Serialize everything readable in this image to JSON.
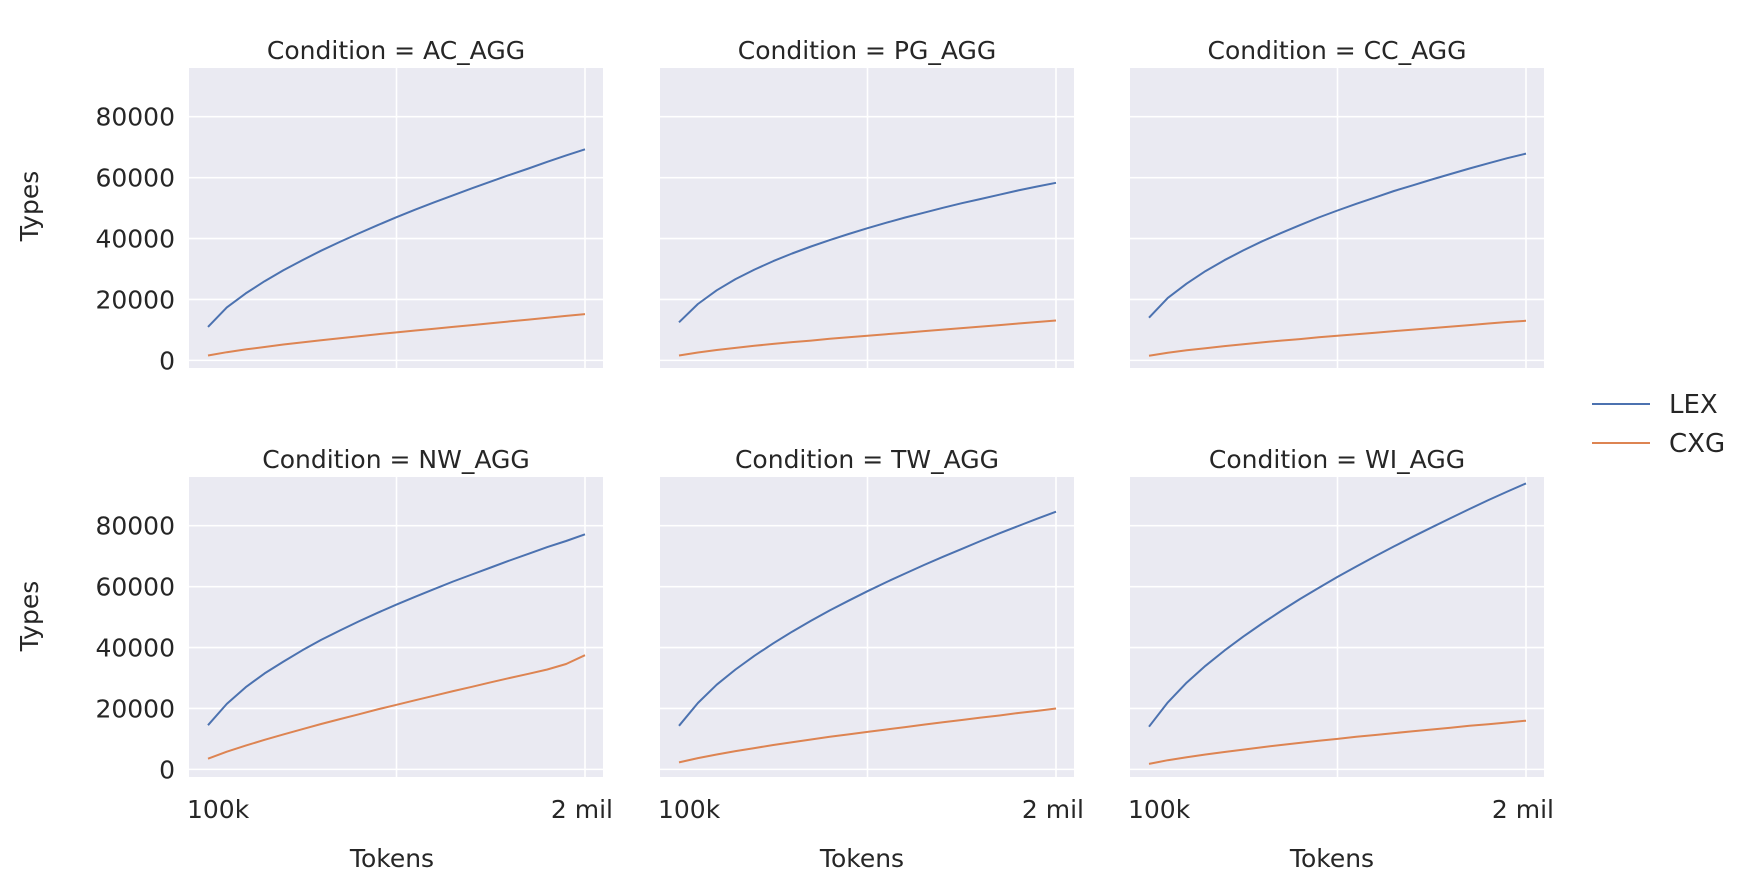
{
  "chart_data": {
    "type": "line",
    "facet_label": "Condition",
    "xlabel": "Tokens",
    "ylabel": "Types",
    "xlim": [
      0,
      1
    ],
    "ylim": [
      -2500,
      96000
    ],
    "yticks": [
      0,
      20000,
      40000,
      60000,
      80000
    ],
    "xtick_labels": [
      "100k",
      "2 mil"
    ],
    "legend_position": "right",
    "series_meta": [
      {
        "name": "LEX",
        "color": "#4c72b0"
      },
      {
        "name": "CXG",
        "color": "#dd8452"
      }
    ],
    "x": [
      0,
      0.05,
      0.1,
      0.15,
      0.2,
      0.25,
      0.3,
      0.35,
      0.4,
      0.45,
      0.5,
      0.55,
      0.6,
      0.65,
      0.7,
      0.75,
      0.8,
      0.85,
      0.9,
      0.95,
      1.0
    ],
    "panels": [
      {
        "condition": "AC_AGG",
        "title": "Condition = AC_AGG",
        "series": [
          {
            "name": "LEX",
            "values": [
              11000,
              17400,
              22000,
              26000,
              29600,
              32900,
              36000,
              38900,
              41700,
              44400,
              47000,
              49500,
              51900,
              54200,
              56500,
              58700,
              60900,
              63000,
              65200,
              67300,
              69300
            ]
          },
          {
            "name": "CXG",
            "values": [
              1600,
              2700,
              3600,
              4400,
              5200,
              5900,
              6600,
              7300,
              7900,
              8600,
              9200,
              9800,
              10400,
              11000,
              11600,
              12200,
              12800,
              13400,
              14000,
              14600,
              15200
            ]
          }
        ]
      },
      {
        "condition": "PG_AGG",
        "title": "Condition = PG_AGG",
        "series": [
          {
            "name": "LEX",
            "values": [
              12500,
              18500,
              23000,
              26700,
              29800,
              32600,
              35100,
              37400,
              39500,
              41500,
              43400,
              45200,
              46900,
              48500,
              50100,
              51600,
              53000,
              54400,
              55800,
              57100,
              58300
            ]
          },
          {
            "name": "CXG",
            "values": [
              1600,
              2600,
              3400,
              4100,
              4800,
              5400,
              6000,
              6500,
              7100,
              7600,
              8100,
              8600,
              9100,
              9600,
              10100,
              10600,
              11100,
              11600,
              12100,
              12600,
              13100
            ]
          }
        ]
      },
      {
        "condition": "CC_AGG",
        "title": "Condition = CC_AGG",
        "series": [
          {
            "name": "LEX",
            "values": [
              14000,
              20500,
              25200,
              29300,
              32900,
              36100,
              39100,
              41800,
              44400,
              46900,
              49200,
              51400,
              53500,
              55600,
              57500,
              59400,
              61200,
              63000,
              64700,
              66400,
              67900
            ]
          },
          {
            "name": "CXG",
            "values": [
              1500,
              2500,
              3300,
              4000,
              4700,
              5300,
              5900,
              6500,
              7000,
              7600,
              8100,
              8600,
              9100,
              9600,
              10100,
              10600,
              11100,
              11600,
              12100,
              12600,
              13000
            ]
          }
        ]
      },
      {
        "condition": "NW_AGG",
        "title": "Condition = NW_AGG",
        "series": [
          {
            "name": "LEX",
            "values": [
              14500,
              21500,
              27000,
              31500,
              35400,
              39100,
              42500,
              45600,
              48600,
              51400,
              54100,
              56700,
              59200,
              61700,
              64000,
              66300,
              68600,
              70800,
              73000,
              75000,
              77200
            ]
          },
          {
            "name": "CXG",
            "values": [
              3500,
              5800,
              7800,
              9700,
              11500,
              13200,
              14900,
              16500,
              18100,
              19700,
              21200,
              22700,
              24200,
              25700,
              27100,
              28600,
              30000,
              31400,
              32800,
              34600,
              37500
            ]
          }
        ]
      },
      {
        "condition": "TW_AGG",
        "title": "Condition = TW_AGG",
        "series": [
          {
            "name": "LEX",
            "values": [
              14300,
              21800,
              27800,
              32800,
              37300,
              41400,
              45200,
              48800,
              52200,
              55400,
              58500,
              61500,
              64300,
              67100,
              69800,
              72400,
              75000,
              77500,
              79900,
              82300,
              84600
            ]
          },
          {
            "name": "CXG",
            "values": [
              2300,
              3700,
              4900,
              6000,
              7000,
              8000,
              8900,
              9800,
              10700,
              11500,
              12300,
              13100,
              13900,
              14700,
              15500,
              16200,
              17000,
              17700,
              18500,
              19200,
              20000
            ]
          }
        ]
      },
      {
        "condition": "WI_AGG",
        "title": "Condition = WI_AGG",
        "series": [
          {
            "name": "LEX",
            "values": [
              14000,
              22000,
              28500,
              34000,
              39000,
              43600,
              47900,
              52000,
              55900,
              59600,
              63200,
              66600,
              70000,
              73200,
              76400,
              79500,
              82500,
              85500,
              88400,
              91200,
              93900
            ]
          },
          {
            "name": "CXG",
            "values": [
              1800,
              3000,
              4000,
              4900,
              5700,
              6500,
              7300,
              8000,
              8700,
              9400,
              10000,
              10700,
              11300,
              11900,
              12500,
              13100,
              13700,
              14300,
              14800,
              15400,
              16000
            ]
          }
        ]
      }
    ]
  }
}
